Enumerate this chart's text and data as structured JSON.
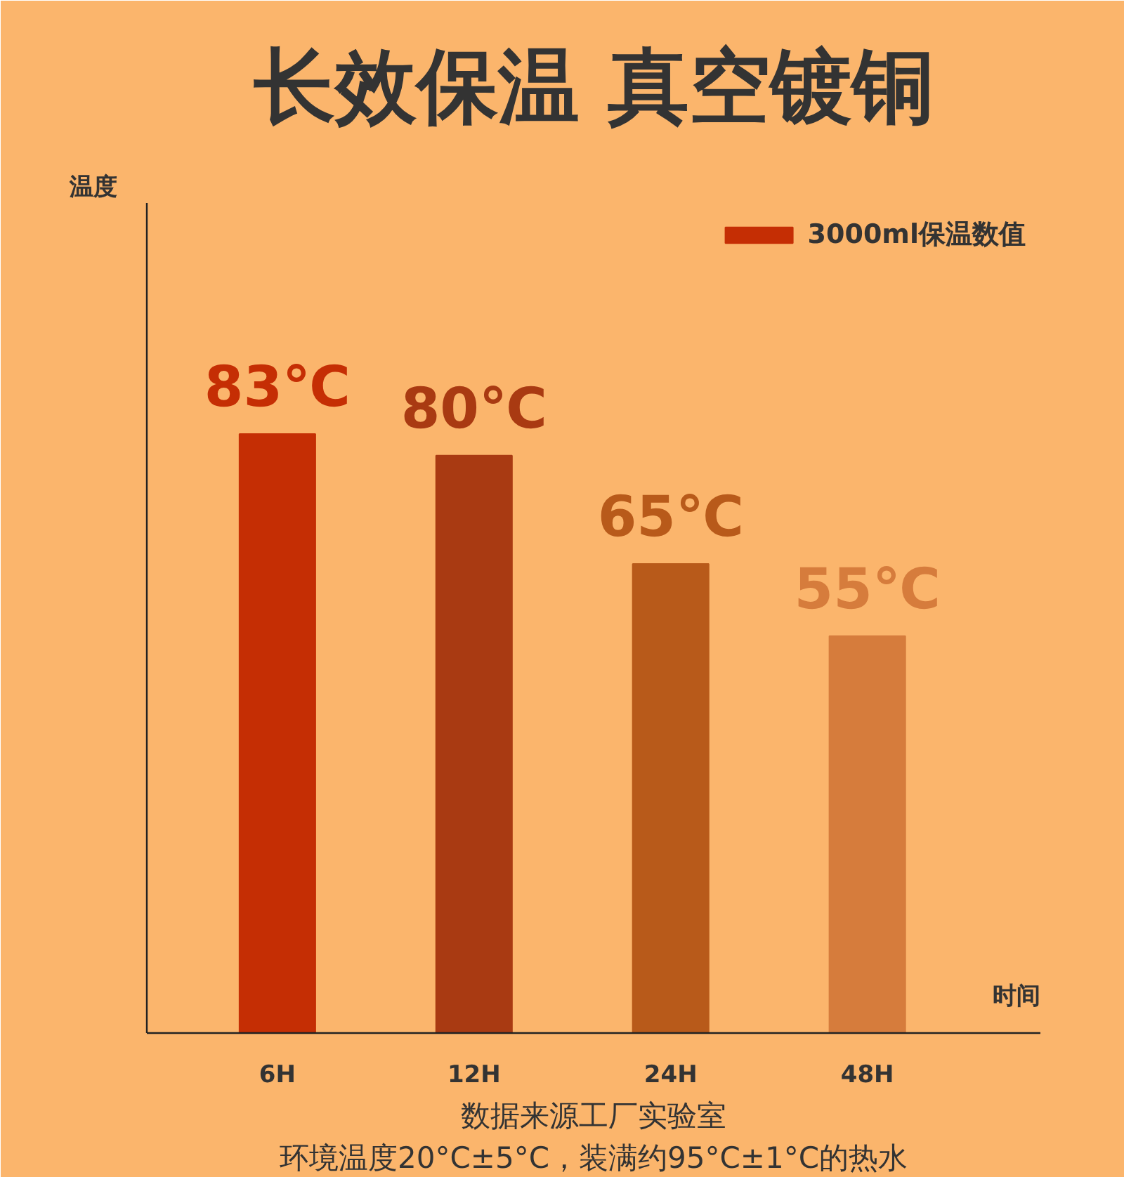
{
  "chart_data": {
    "type": "bar",
    "title": "长效保温 真空镀铜",
    "xlabel": "时间",
    "ylabel": "温度",
    "categories": [
      "6H",
      "12H",
      "24H",
      "48H"
    ],
    "series": [
      {
        "name": "3000ml保温数值",
        "colors": [
          "#c52e04",
          "#a93a12",
          "#b85a1a",
          "#d67c3c"
        ],
        "values": [
          83,
          80,
          65,
          55
        ],
        "value_labels": [
          "83℃",
          "80℃",
          "65℃",
          "55℃"
        ]
      }
    ],
    "ylim": [
      0,
      115
    ],
    "tick_labels": "x",
    "grid": false,
    "legend": "top right",
    "annotations": [
      "数据来源工厂实验室",
      "环境温度20°C±5°C，装满约95°C±1°C的热水"
    ]
  }
}
